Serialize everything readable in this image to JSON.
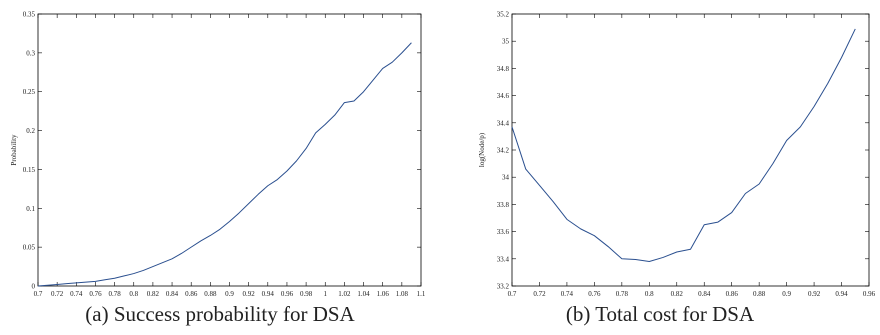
{
  "captions": {
    "a": "(a) Success probability for DSA",
    "b": "(b) Total cost for DSA"
  },
  "chart_data": [
    {
      "type": "line",
      "title": "",
      "xlabel": "",
      "ylabel": "Probability",
      "xlim": [
        0.7,
        1.1
      ],
      "ylim": [
        0,
        0.35
      ],
      "xticks": [
        "0.7",
        "0.72",
        "0.74",
        "0.76",
        "0.78",
        "0.8",
        "0.82",
        "0.84",
        "0.86",
        "0.88",
        "0.9",
        "0.92",
        "0.94",
        "0.96",
        "0.98",
        "1",
        "1.02",
        "1.04",
        "1.06",
        "1.08",
        "1.1"
      ],
      "yticks": [
        "0",
        "0.05",
        "0.1",
        "0.15",
        "0.2",
        "0.25",
        "0.3",
        "0.35"
      ],
      "series": [
        {
          "color": "#2a4f8f",
          "x": [
            0.7,
            0.71,
            0.72,
            0.73,
            0.74,
            0.75,
            0.76,
            0.77,
            0.78,
            0.79,
            0.8,
            0.81,
            0.82,
            0.83,
            0.84,
            0.85,
            0.86,
            0.87,
            0.88,
            0.89,
            0.9,
            0.91,
            0.92,
            0.93,
            0.94,
            0.95,
            0.96,
            0.97,
            0.98,
            0.99,
            1.0,
            1.01,
            1.02,
            1.03,
            1.04,
            1.05,
            1.06,
            1.07,
            1.08,
            1.09
          ],
          "y": [
            0.0,
            0.001,
            0.002,
            0.003,
            0.004,
            0.005,
            0.006,
            0.008,
            0.01,
            0.013,
            0.016,
            0.02,
            0.025,
            0.03,
            0.035,
            0.042,
            0.05,
            0.058,
            0.065,
            0.073,
            0.083,
            0.094,
            0.106,
            0.118,
            0.129,
            0.137,
            0.148,
            0.161,
            0.177,
            0.197,
            0.208,
            0.22,
            0.236,
            0.238,
            0.25,
            0.265,
            0.28,
            0.288,
            0.3,
            0.313
          ]
        }
      ]
    },
    {
      "type": "line",
      "title": "",
      "xlabel": "",
      "ylabel": "log(Node/p)",
      "xlim": [
        0.7,
        0.96
      ],
      "ylim": [
        33.2,
        35.2
      ],
      "xticks": [
        "0.7",
        "0.72",
        "0.74",
        "0.76",
        "0.78",
        "0.8",
        "0.82",
        "0.84",
        "0.86",
        "0.88",
        "0.9",
        "0.92",
        "0.94",
        "0.96"
      ],
      "yticks": [
        "33.2",
        "33.4",
        "33.6",
        "33.8",
        "34",
        "34.2",
        "34.4",
        "34.6",
        "34.8",
        "35",
        "35.2"
      ],
      "series": [
        {
          "color": "#2a4f8f",
          "x": [
            0.7,
            0.71,
            0.72,
            0.73,
            0.74,
            0.75,
            0.76,
            0.77,
            0.78,
            0.79,
            0.8,
            0.81,
            0.82,
            0.83,
            0.84,
            0.85,
            0.86,
            0.87,
            0.88,
            0.89,
            0.9,
            0.91,
            0.92,
            0.93,
            0.94,
            0.95
          ],
          "y": [
            34.37,
            34.06,
            33.94,
            33.82,
            33.69,
            33.62,
            33.57,
            33.49,
            33.4,
            33.395,
            33.38,
            33.41,
            33.45,
            33.47,
            33.65,
            33.67,
            33.74,
            33.88,
            33.95,
            34.1,
            34.27,
            34.37,
            34.52,
            34.69,
            34.88,
            35.09
          ]
        }
      ]
    }
  ]
}
